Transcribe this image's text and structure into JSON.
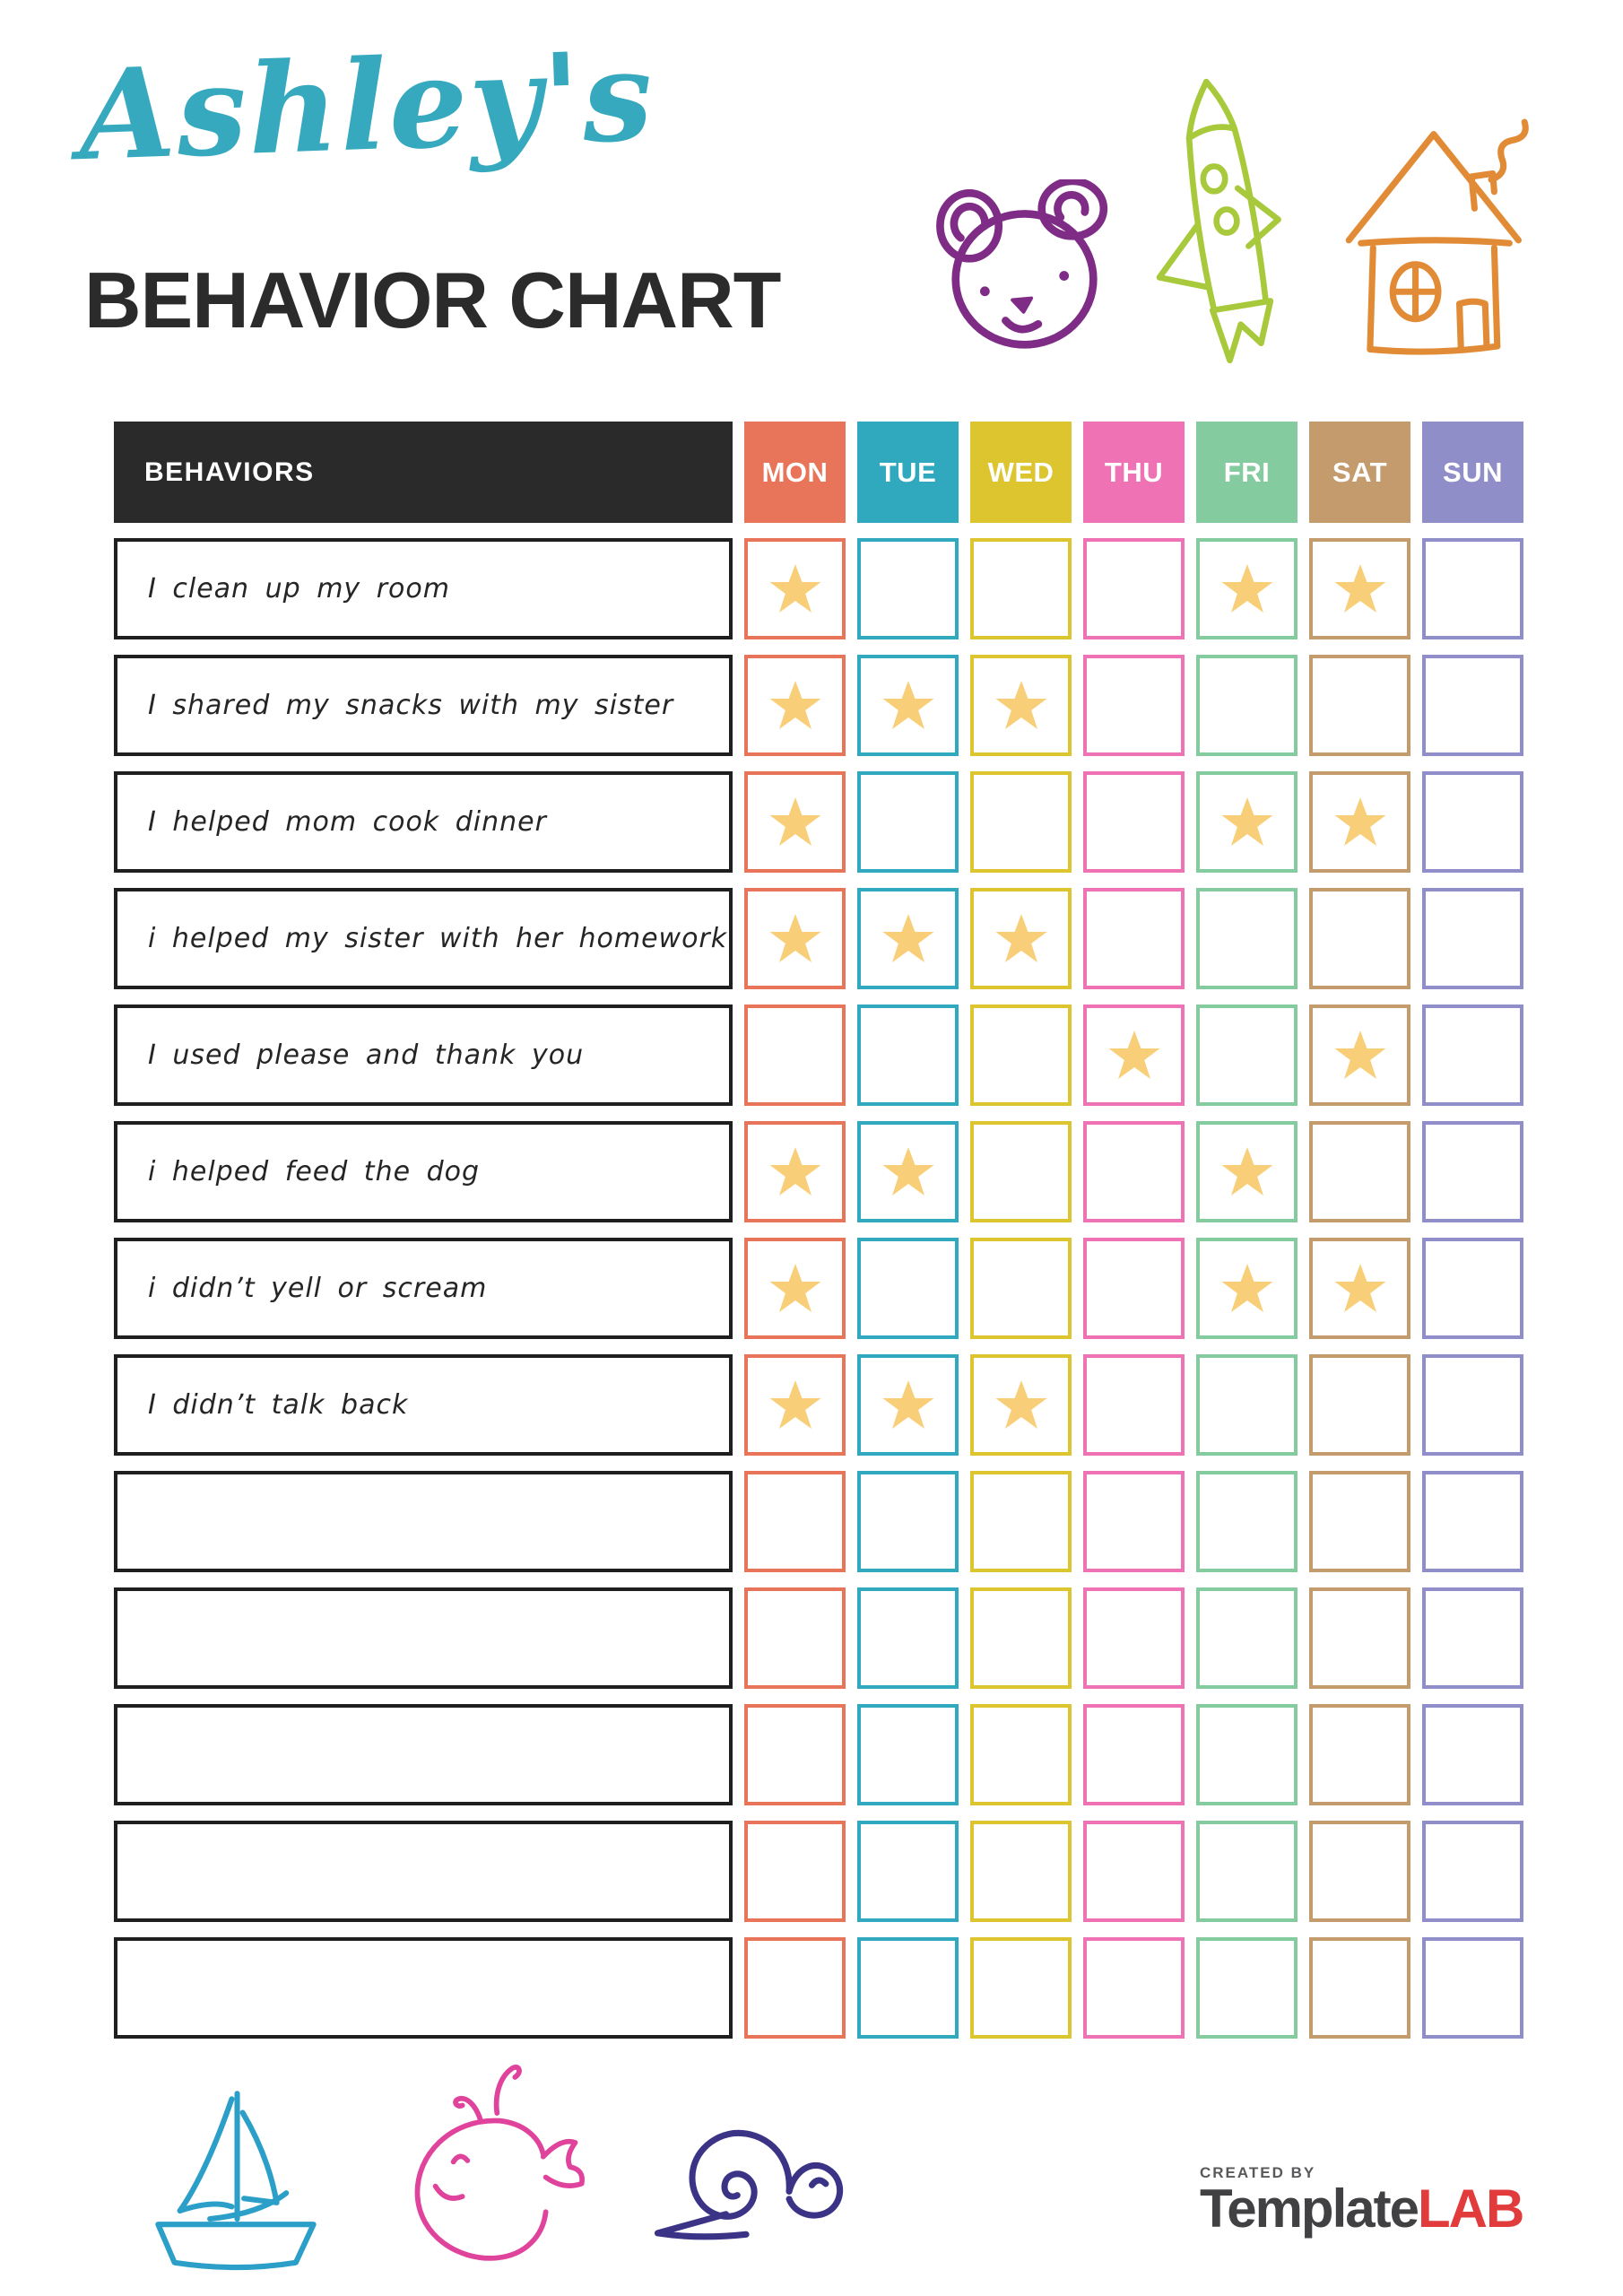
{
  "header": {
    "name": "Ashley's",
    "title": "BEHAVIOR CHART"
  },
  "theme": {
    "title_script": "#36A9BE",
    "title_main": "#2B2B2B",
    "header_bg": "#2A2A2A",
    "header_text": "#FFFFFF",
    "row_border": "#1F1F1F",
    "star": "#F8CF78",
    "bear": "#7E2C85",
    "rocket": "#A8C93B",
    "house": "#E28B36",
    "sailboat": "#2C9FC9",
    "whale": "#E0439B",
    "snail": "#3B3486",
    "logo_gray": "#414042",
    "logo_red": "#E23B3B",
    "created_by": "#58595B"
  },
  "decorations": {
    "top_icons": [
      "bear-icon",
      "rocket-icon",
      "house-icon"
    ],
    "bottom_icons": [
      "sailboat-icon",
      "whale-icon",
      "snail-icon"
    ]
  },
  "table": {
    "behaviors_header": "BEHAVIORS",
    "days": [
      {
        "label": "MON",
        "color": "#E8745A"
      },
      {
        "label": "TUE",
        "color": "#30A9BE"
      },
      {
        "label": "WED",
        "color": "#DDC52F"
      },
      {
        "label": "THU",
        "color": "#EF72B5"
      },
      {
        "label": "FRI",
        "color": "#85CBA0"
      },
      {
        "label": "SAT",
        "color": "#C49B6C"
      },
      {
        "label": "SUN",
        "color": "#908EC9"
      }
    ],
    "rows": [
      {
        "label": "I clean up my room",
        "stars": [
          "MON",
          "FRI",
          "SAT"
        ]
      },
      {
        "label": "I shared my snacks with my sister",
        "stars": [
          "MON",
          "TUE",
          "WED"
        ]
      },
      {
        "label": "I helped mom cook dinner",
        "stars": [
          "MON",
          "FRI",
          "SAT"
        ]
      },
      {
        "label": "i helped my sister with her homework",
        "stars": [
          "MON",
          "TUE",
          "WED"
        ]
      },
      {
        "label": "I used please and thank you",
        "stars": [
          "THU",
          "SAT"
        ]
      },
      {
        "label": "i helped feed the dog",
        "stars": [
          "MON",
          "TUE",
          "FRI"
        ]
      },
      {
        "label": "i didn’t yell or scream",
        "stars": [
          "MON",
          "FRI",
          "SAT"
        ]
      },
      {
        "label": "I didn’t talk back",
        "stars": [
          "MON",
          "TUE",
          "WED"
        ]
      },
      {
        "label": "",
        "stars": []
      },
      {
        "label": "",
        "stars": []
      },
      {
        "label": "",
        "stars": []
      },
      {
        "label": "",
        "stars": []
      },
      {
        "label": "",
        "stars": []
      }
    ]
  },
  "footer": {
    "created_by": "CREATED BY",
    "brand_primary": "Template",
    "brand_accent": "LAB"
  }
}
